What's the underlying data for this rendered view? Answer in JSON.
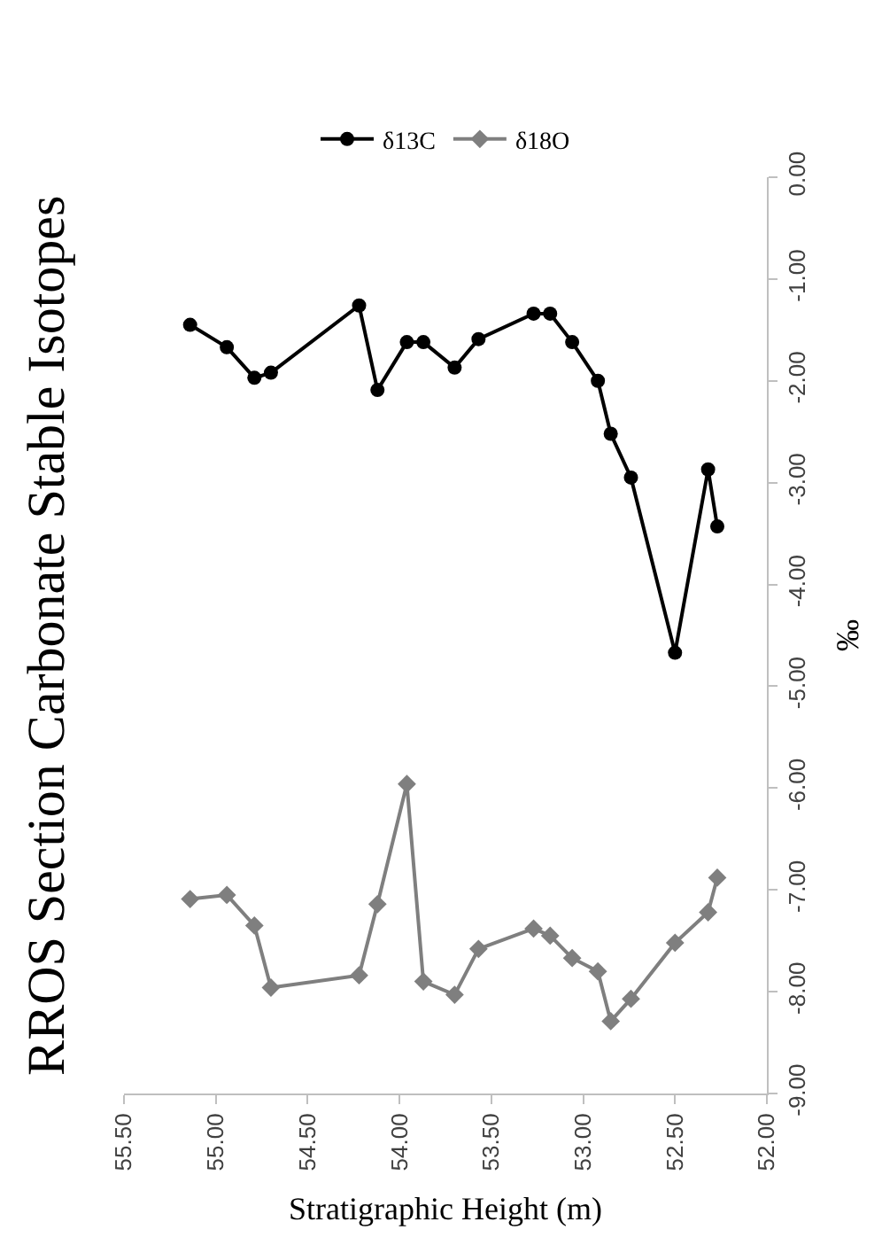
{
  "chart_data": {
    "type": "line",
    "title": "RROS Section Carbonate Stable Isotopes",
    "xlabel": "Stratigraphic Height (m)",
    "ylabel": "‰",
    "xlim": [
      55.5,
      52.0
    ],
    "xticks": [
      {
        "value": 55.5,
        "label": "55.50"
      },
      {
        "value": 55.0,
        "label": "55.00"
      },
      {
        "value": 54.5,
        "label": "54.50"
      },
      {
        "value": 54.0,
        "label": "54.00"
      },
      {
        "value": 53.5,
        "label": "53.50"
      },
      {
        "value": 53.0,
        "label": "53.00"
      },
      {
        "value": 52.5,
        "label": "52.50"
      },
      {
        "value": 52.0,
        "label": "52.00"
      }
    ],
    "ylim": [
      -9,
      0
    ],
    "yticks": [
      {
        "value": 0,
        "label": "0.00"
      },
      {
        "value": -1,
        "label": "-1.00"
      },
      {
        "value": -2,
        "label": "-2.00"
      },
      {
        "value": -3,
        "label": "-3.00"
      },
      {
        "value": -4,
        "label": "-4.00"
      },
      {
        "value": -5,
        "label": "-5.00"
      },
      {
        "value": -6,
        "label": "-6.00"
      },
      {
        "value": -7,
        "label": "-7.00"
      },
      {
        "value": -8,
        "label": "-8.00"
      },
      {
        "value": -9,
        "label": "-9.00"
      }
    ],
    "legend": "top",
    "x": [
      55.14,
      54.94,
      54.79,
      54.7,
      54.22,
      54.12,
      53.96,
      53.87,
      53.7,
      53.57,
      53.27,
      53.18,
      53.06,
      52.92,
      52.85,
      52.74,
      52.5,
      52.32,
      52.27
    ],
    "series": [
      {
        "name": "δ13C",
        "color": "#000000",
        "marker": "circle",
        "values": [
          -1.45,
          -1.67,
          -1.97,
          -1.92,
          -1.26,
          -2.09,
          -1.62,
          -1.62,
          -1.87,
          -1.59,
          -1.34,
          -1.34,
          -1.62,
          -2.0,
          -2.52,
          -2.95,
          -4.67,
          -2.87,
          -3.43
        ]
      },
      {
        "name": "δ18O",
        "color": "#7f7f7f",
        "marker": "diamond",
        "values": [
          -7.09,
          -7.05,
          -7.35,
          -7.96,
          -7.84,
          -7.14,
          -5.96,
          -7.9,
          -8.03,
          -7.58,
          -7.38,
          -7.45,
          -7.67,
          -7.8,
          -8.29,
          -8.07,
          -7.52,
          -7.22,
          -6.88
        ]
      }
    ]
  }
}
